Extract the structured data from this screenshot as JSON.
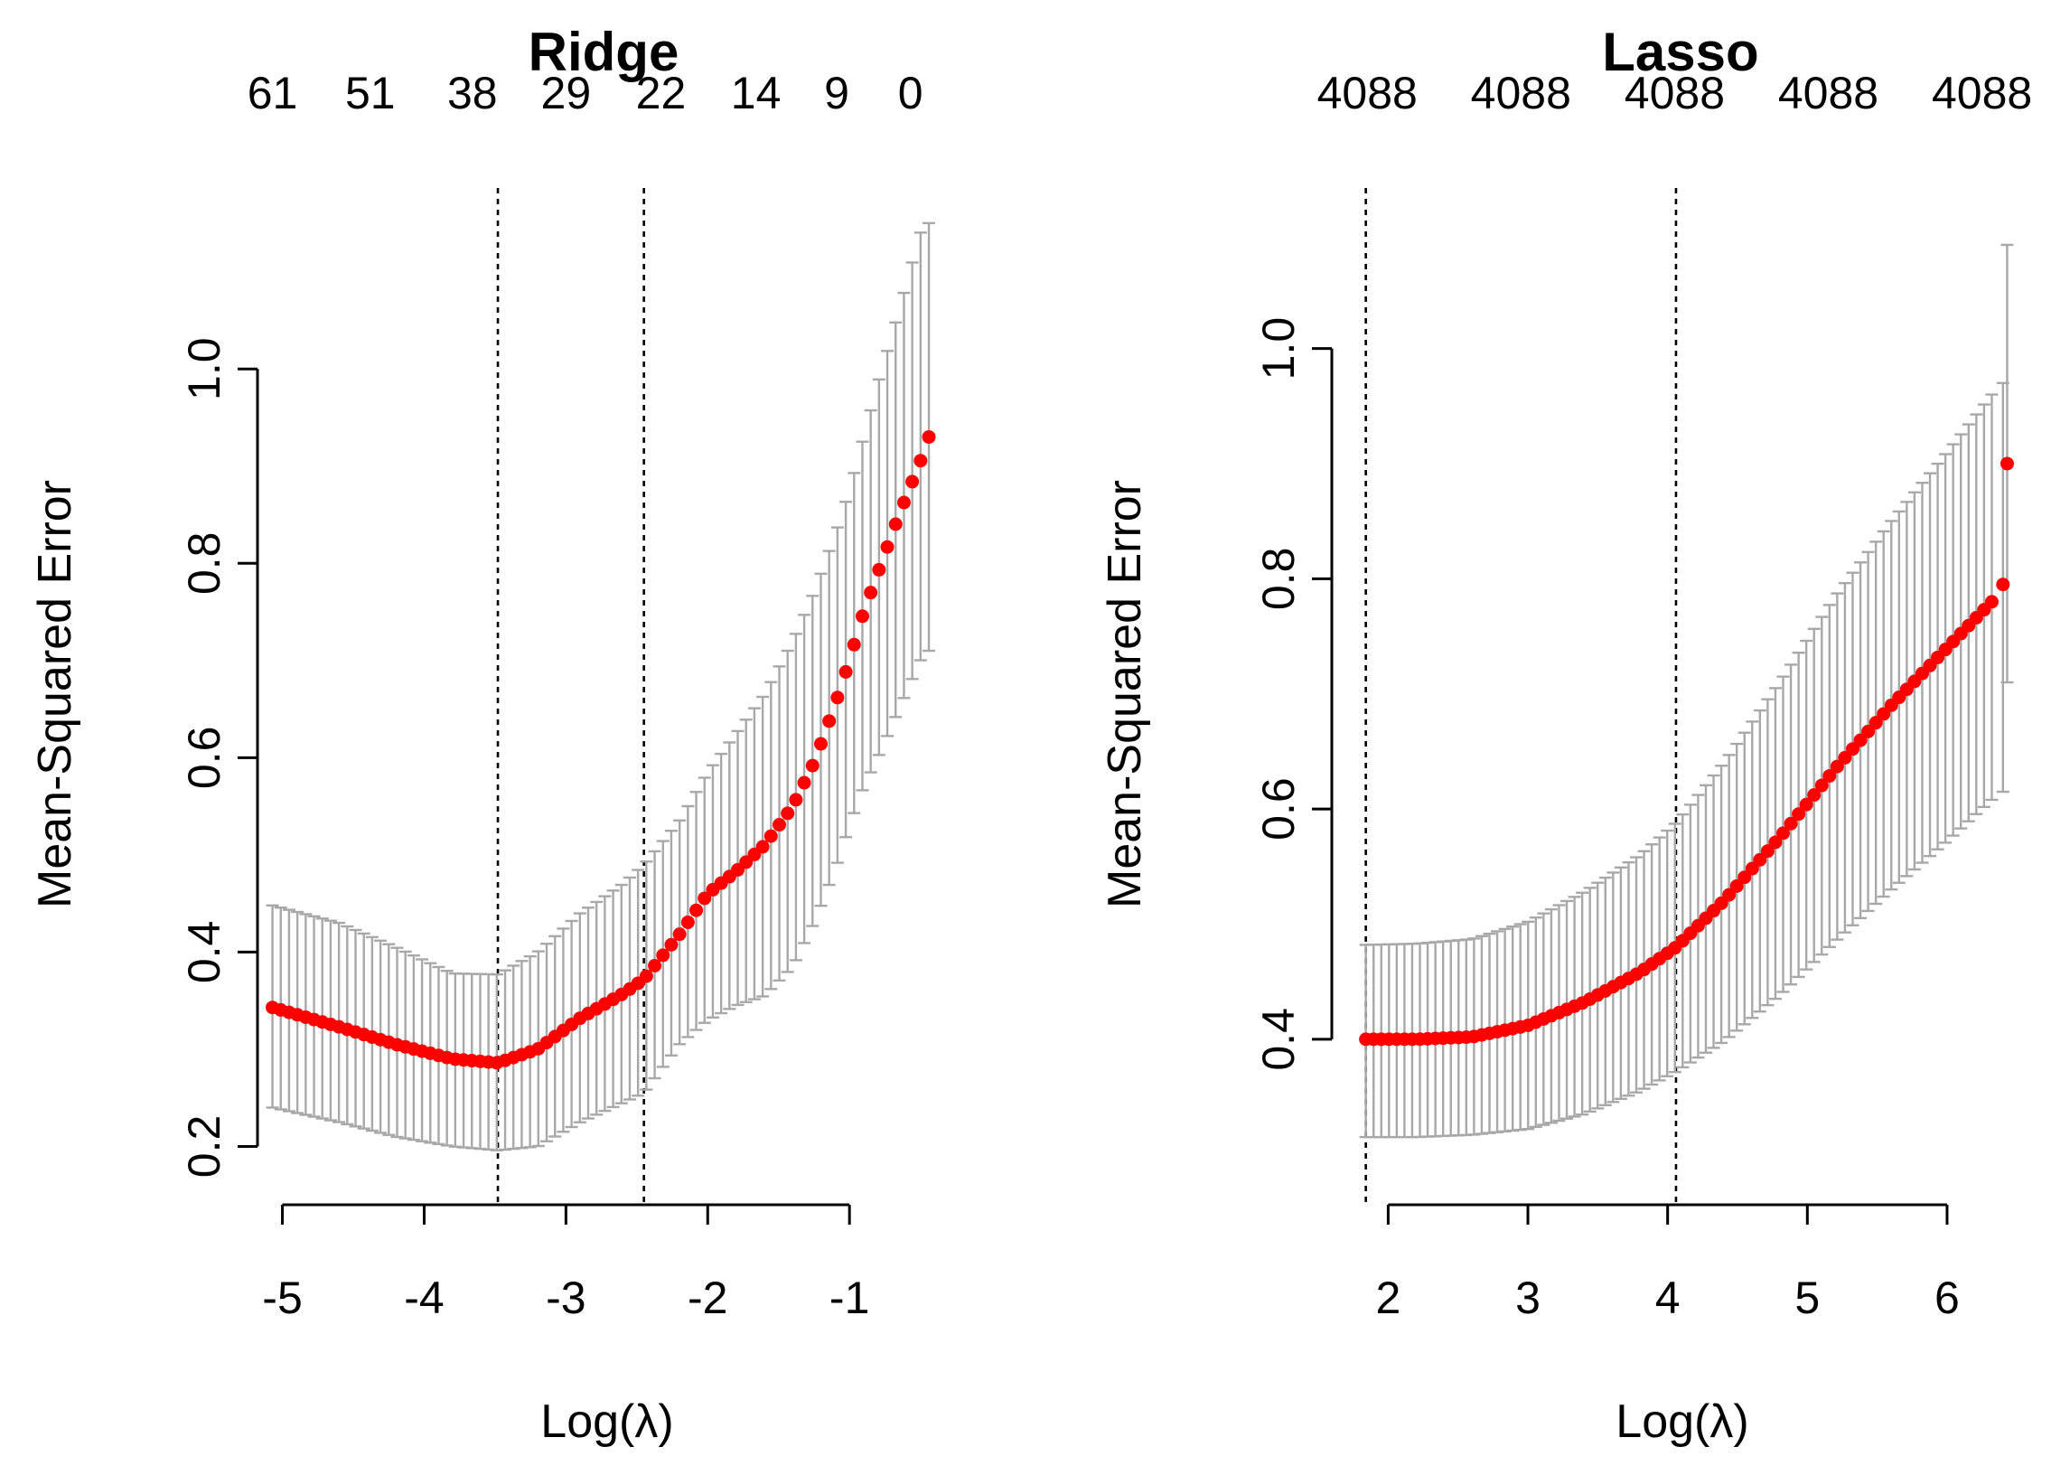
{
  "colors": {
    "points": "#ff0000",
    "error_bars": "#a8a8a8",
    "axes": "#000000",
    "background": "#ffffff"
  },
  "chart_data": [
    {
      "id": "ridge",
      "type": "scatter",
      "title": "Ridge",
      "xlabel": "Log(λ)",
      "ylabel": "Mean-Squared Error",
      "xlim": [
        -5.15,
        -0.3
      ],
      "ylim": [
        0.18,
        1.175
      ],
      "xticks": [
        -5,
        -4,
        -3,
        -2,
        -1
      ],
      "xtick_labels": [
        "-5",
        "-4",
        "-3",
        "-2",
        "-1"
      ],
      "yticks": [
        0.2,
        0.4,
        0.6,
        0.8,
        1.0
      ],
      "ytick_labels": [
        "0.2",
        "0.4",
        "0.6",
        "0.8",
        "1.0"
      ],
      "top_axis": {
        "positions": [
          -5.07,
          -4.38,
          -3.66,
          -3.0,
          -2.33,
          -1.66,
          -1.09,
          -0.57
        ],
        "labels": [
          "61",
          "51",
          "38",
          "29",
          "22",
          "14",
          "9",
          "0"
        ]
      },
      "vlines": [
        -3.48,
        -2.45
      ],
      "x_range": [
        -5.07,
        -0.44
      ],
      "n_points": 80,
      "curve": {
        "x": [
          -5.07,
          -4.6,
          -4.2,
          -3.8,
          -3.48,
          -3.2,
          -2.9,
          -2.6,
          -2.45,
          -2.2,
          -2.0,
          -1.8,
          -1.6,
          -1.4,
          -1.25,
          -1.1,
          -1.0,
          -0.9,
          -0.8,
          -0.65,
          -0.5,
          -0.44
        ],
        "mean": [
          0.343,
          0.323,
          0.305,
          0.29,
          0.286,
          0.3,
          0.332,
          0.357,
          0.372,
          0.418,
          0.46,
          0.483,
          0.51,
          0.55,
          0.595,
          0.655,
          0.7,
          0.75,
          0.79,
          0.85,
          0.905,
          0.93
        ],
        "lower": [
          0.24,
          0.225,
          0.21,
          0.2,
          0.196,
          0.2,
          0.225,
          0.245,
          0.255,
          0.305,
          0.33,
          0.345,
          0.355,
          0.385,
          0.43,
          0.485,
          0.53,
          0.57,
          0.6,
          0.65,
          0.7,
          0.71
        ],
        "upper": [
          0.448,
          0.43,
          0.405,
          0.378,
          0.377,
          0.4,
          0.44,
          0.47,
          0.49,
          0.535,
          0.585,
          0.625,
          0.665,
          0.72,
          0.77,
          0.83,
          0.875,
          0.93,
          0.985,
          1.06,
          1.14,
          1.15
        ]
      }
    },
    {
      "id": "lasso",
      "type": "scatter",
      "title": "Lasso",
      "xlabel": "Log(λ)",
      "ylabel": "Mean-Squared Error",
      "xlim": [
        1.7,
        6.55
      ],
      "ylim": [
        0.29,
        1.13
      ],
      "xticks": [
        2,
        3,
        4,
        5,
        6
      ],
      "xtick_labels": [
        "2",
        "3",
        "4",
        "5",
        "6"
      ],
      "yticks": [
        0.4,
        0.6,
        0.8,
        1.0
      ],
      "ytick_labels": [
        "0.4",
        "0.6",
        "0.8",
        "1.0"
      ],
      "top_axis": {
        "positions": [
          1.85,
          2.95,
          4.05,
          5.15,
          6.25
        ],
        "labels": [
          "4088",
          "4088",
          "4088",
          "4088",
          "4088"
        ]
      },
      "vlines": [
        1.84,
        4.06
      ],
      "x_range": [
        1.84,
        6.32
      ],
      "n_points": 82,
      "curve": {
        "x": [
          1.84,
          2.2,
          2.6,
          3.0,
          3.4,
          3.8,
          4.06,
          4.4,
          4.8,
          5.2,
          5.6,
          6.0,
          6.32
        ],
        "mean": [
          0.4,
          0.4,
          0.402,
          0.412,
          0.432,
          0.458,
          0.48,
          0.52,
          0.575,
          0.635,
          0.69,
          0.74,
          0.78
        ],
        "lower": [
          0.315,
          0.315,
          0.317,
          0.322,
          0.335,
          0.355,
          0.372,
          0.398,
          0.438,
          0.485,
          0.53,
          0.572,
          0.608
        ],
        "upper": [
          0.482,
          0.483,
          0.487,
          0.502,
          0.528,
          0.56,
          0.588,
          0.64,
          0.71,
          0.785,
          0.85,
          0.91,
          0.96
        ]
      },
      "extra_points": [
        {
          "x": 6.4,
          "mean": 0.795,
          "lower": 0.615,
          "upper": 0.97
        },
        {
          "x": 6.43,
          "mean": 0.9,
          "lower": 0.71,
          "upper": 1.09
        }
      ]
    }
  ]
}
